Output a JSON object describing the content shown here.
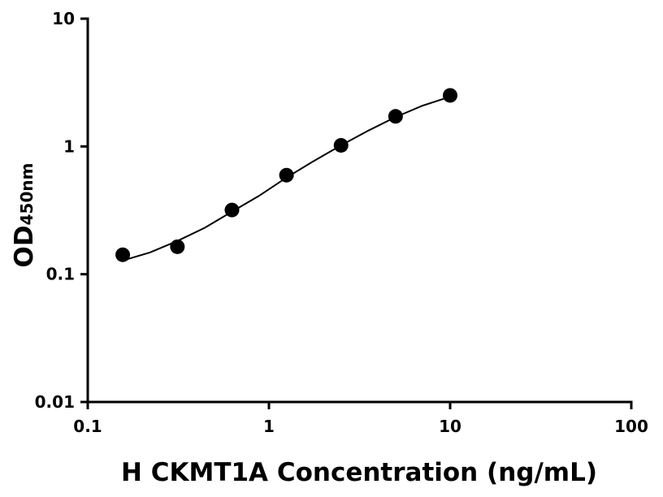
{
  "chart_data": {
    "type": "scatter",
    "x_label": "H CKMT1A Concentration (ng/mL)",
    "y_label": "OD",
    "y_label_sub": "450nm",
    "x": [
      0.156,
      0.3125,
      0.625,
      1.25,
      2.5,
      5,
      10
    ],
    "values": [
      0.142,
      0.164,
      0.318,
      0.596,
      1.02,
      1.72,
      2.51
    ],
    "color": "#000000",
    "curve": {
      "x": [
        0.156,
        0.22,
        0.3125,
        0.44,
        0.625,
        0.88,
        1.25,
        1.77,
        2.5,
        3.54,
        5,
        7.07,
        10
      ],
      "values": [
        0.128,
        0.148,
        0.182,
        0.23,
        0.309,
        0.41,
        0.57,
        0.77,
        1.02,
        1.33,
        1.7,
        2.09,
        2.45
      ],
      "color": "#000000"
    },
    "xlog": true,
    "ylog": true,
    "xlim": [
      0.1,
      100
    ],
    "ylim": [
      0.01,
      10
    ],
    "xticks": [
      0.1,
      1,
      10,
      100
    ],
    "yticks": [
      0.01,
      0.1,
      1,
      10
    ]
  }
}
